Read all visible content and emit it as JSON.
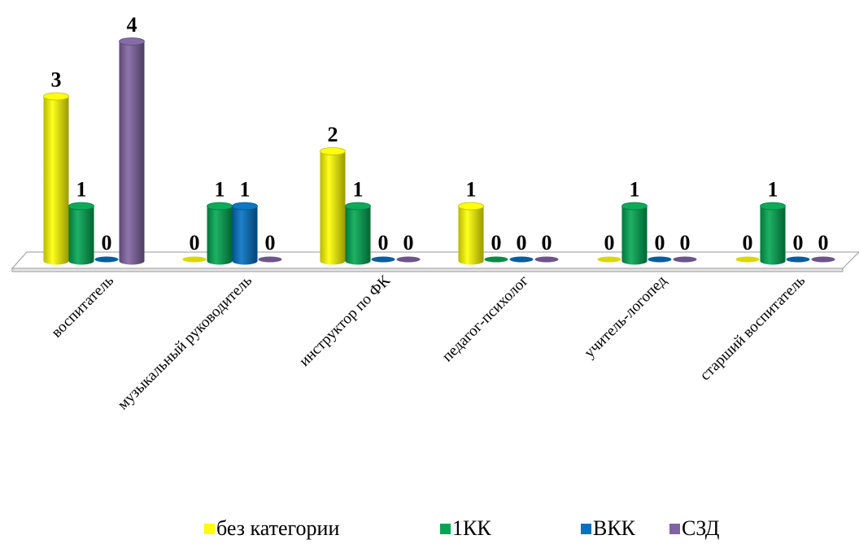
{
  "chart_data": {
    "type": "bar",
    "categories": [
      "воспитатель",
      "музыкальный руководитель",
      "инструктор по ФК",
      "педагог-психолог",
      "учитель-логопед",
      "старший воспитатель"
    ],
    "series": [
      {
        "name": "без категории",
        "color": "#ffff00",
        "values": [
          3,
          0,
          2,
          1,
          0,
          0
        ]
      },
      {
        "name": "1КК",
        "color": "#00a651",
        "values": [
          1,
          1,
          1,
          0,
          1,
          1
        ]
      },
      {
        "name": "ВКК",
        "color": "#0070c0",
        "values": [
          0,
          1,
          0,
          0,
          0,
          0
        ]
      },
      {
        "name": "СЗД",
        "color": "#8064a2",
        "values": [
          4,
          0,
          0,
          0,
          0,
          0
        ]
      }
    ],
    "title": "",
    "xlabel": "",
    "ylabel": "",
    "ylim": [
      0,
      4
    ],
    "grid": false,
    "legend_position": "bottom-right",
    "style": "3d-cylinder"
  }
}
